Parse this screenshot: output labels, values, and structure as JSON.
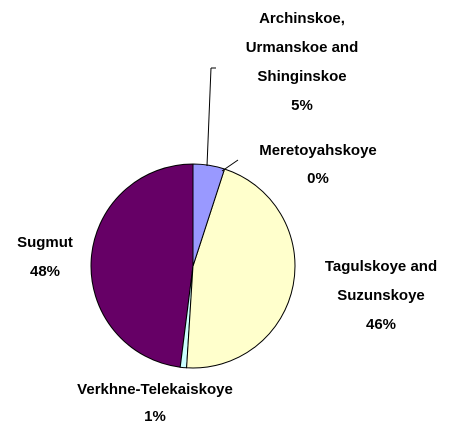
{
  "chart_data": {
    "type": "pie",
    "categories": [
      "Archinskoe, Urmanskoe and Shinginskoe",
      "Meretoyahskoye",
      "Tagulskoye and Suzunskoye",
      "Verkhne-Telekaiskoye",
      "Sugmut"
    ],
    "values": [
      5,
      0,
      46,
      1,
      48
    ],
    "value_labels": [
      "5%",
      "0%",
      "46%",
      "1%",
      "48%"
    ],
    "colors": [
      "#9999ff",
      "#993366",
      "#ffffcc",
      "#ccffff",
      "#660066"
    ]
  }
}
